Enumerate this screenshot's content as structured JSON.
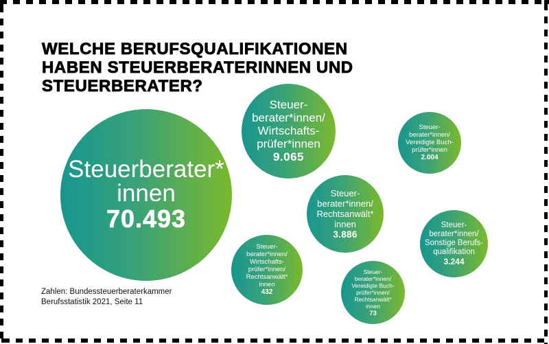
{
  "title": {
    "lines": [
      "WELCHE BERUFSQUALIFIKATIONEN",
      "HABEN STEUERBERATERINNEN UND",
      "STEUERBERATER?"
    ]
  },
  "bubbles": [
    {
      "id": "main",
      "label_lines": [
        "Steuerberater*",
        "innen"
      ],
      "value": "70.493"
    },
    {
      "id": "wp",
      "label_lines": [
        "Steuer-",
        "berater*innen/",
        "Wirtschafts-",
        "prüfer*innen"
      ],
      "value": "9.065"
    },
    {
      "id": "vb",
      "label_lines": [
        "Steuer-",
        "berater*innen/",
        "Vereidigte Buch-",
        "prüfer*innen"
      ],
      "value": "2.004"
    },
    {
      "id": "ra",
      "label_lines": [
        "Steuer-",
        "berater*innen/",
        "Rechtsanwält*",
        "innen"
      ],
      "value": "3.886"
    },
    {
      "id": "so",
      "label_lines": [
        "Steuer-",
        "berater*innen/",
        "Sonstige Berufs-",
        "qualifikation"
      ],
      "value": "3.244"
    },
    {
      "id": "wpra",
      "label_lines": [
        "Steuer-",
        "berater*innen/",
        "Wirtschafts-",
        "prüfer*innen/",
        "Rechtsanwält*",
        "innen"
      ],
      "value": "432"
    },
    {
      "id": "vbra",
      "label_lines": [
        "Steuer-",
        "berater*innen/",
        "Vereidigte Buch-",
        "prüfer*innen/",
        "Rechtsanwält*",
        "innen"
      ],
      "value": "73"
    }
  ],
  "source": {
    "lines": [
      "Zahlen: Bundessteuerberaterkammer",
      "Berufsstatistik 2021, Seite 11"
    ]
  },
  "colors": {
    "gradient_start": "#17968f",
    "gradient_end": "#7bb92c",
    "frame": "#000000",
    "text_on_bubble": "#ffffff"
  },
  "chart_data": {
    "type": "bubble",
    "title": "WELCHE BERUFSQUALIFIKATIONEN HABEN STEUERBERATERINNEN UND STEUERBERATER?",
    "categories": [
      "Steuerberater*innen",
      "Steuerberater*innen/Wirtschaftsprüfer*innen",
      "Steuerberater*innen/Vereidigte Buchprüfer*innen",
      "Steuerberater*innen/Rechtsanwält*innen",
      "Steuerberater*innen/Sonstige Berufsqualifikation",
      "Steuerberater*innen/Wirtschaftsprüfer*innen/Rechtsanwält*innen",
      "Steuerberater*innen/Vereidigte Buchprüfer*innen/Rechtsanwält*innen"
    ],
    "values": [
      70493,
      9065,
      2004,
      3886,
      3244,
      432,
      73
    ],
    "value_labels": [
      "70.493",
      "9.065",
      "2.004",
      "3.886",
      "3.244",
      "432",
      "73"
    ],
    "source": "Zahlen: Bundessteuerberaterkammer Berufsstatistik 2021, Seite 11",
    "xlabel": "",
    "ylabel": "",
    "legend": "none",
    "grid": false
  }
}
